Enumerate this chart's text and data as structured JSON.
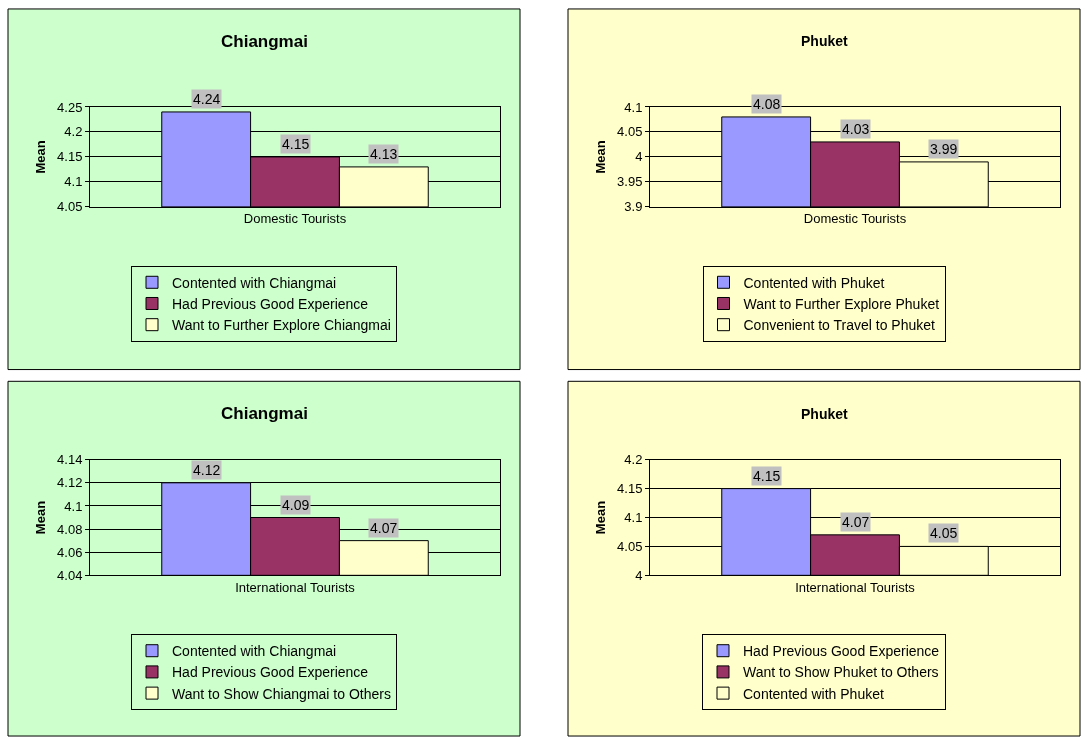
{
  "chart_data": [
    {
      "type": "bar",
      "title": "Chiangmai",
      "ylabel": "Mean",
      "categories": [
        "Domestic Tourists"
      ],
      "ylim": [
        4.05,
        4.25
      ],
      "yticks": [
        4.05,
        4.1,
        4.15,
        4.2,
        4.25
      ],
      "grid": "y",
      "legend": "bottom",
      "data_labels": true,
      "series": [
        {
          "name": "Contented with Chiangmai",
          "color": "#9999ff",
          "values": [
            4.24
          ]
        },
        {
          "name": "Had Previous Good Experience",
          "color": "#993366",
          "values": [
            4.15
          ]
        },
        {
          "name": "Want to Further Explore Chiangmai",
          "color": "#ffffcc",
          "values": [
            4.13
          ]
        }
      ]
    },
    {
      "type": "bar",
      "title": "Phuket",
      "ylabel": "Mean",
      "categories": [
        "Domestic Tourists"
      ],
      "ylim": [
        3.9,
        4.1
      ],
      "yticks": [
        3.9,
        3.95,
        4,
        4.05,
        4.1
      ],
      "grid": "y",
      "legend": "bottom",
      "data_labels": true,
      "series": [
        {
          "name": "Contented with Phuket",
          "color": "#9999ff",
          "values": [
            4.08
          ]
        },
        {
          "name": "Want to Further Explore Phuket",
          "color": "#993366",
          "values": [
            4.03
          ]
        },
        {
          "name": "Convenient to Travel to Phuket",
          "color": "#ffffcc",
          "values": [
            3.99
          ]
        }
      ]
    },
    {
      "type": "bar",
      "title": "Chiangmai",
      "ylabel": "Mean",
      "categories": [
        "International Tourists"
      ],
      "ylim": [
        4.04,
        4.14
      ],
      "yticks": [
        4.04,
        4.06,
        4.08,
        4.1,
        4.12,
        4.14
      ],
      "grid": "y",
      "legend": "bottom",
      "data_labels": true,
      "series": [
        {
          "name": "Contented with Chiangmai",
          "color": "#9999ff",
          "values": [
            4.12
          ]
        },
        {
          "name": "Had Previous Good Experience",
          "color": "#993366",
          "values": [
            4.09
          ]
        },
        {
          "name": "Want to Show Chiangmai to Others",
          "color": "#ffffcc",
          "values": [
            4.07
          ]
        }
      ]
    },
    {
      "type": "bar",
      "title": "Phuket",
      "ylabel": "Mean",
      "categories": [
        "International Tourists"
      ],
      "ylim": [
        4,
        4.2
      ],
      "yticks": [
        4,
        4.05,
        4.1,
        4.15,
        4.2
      ],
      "grid": "y",
      "legend": "bottom",
      "data_labels": true,
      "series": [
        {
          "name": "Had Previous Good Experience",
          "color": "#9999ff",
          "values": [
            4.15
          ]
        },
        {
          "name": "Want to Show Phuket to Others",
          "color": "#993366",
          "values": [
            4.07
          ]
        },
        {
          "name": "Contented with Phuket",
          "color": "#ffffcc",
          "values": [
            4.05
          ]
        }
      ]
    }
  ]
}
